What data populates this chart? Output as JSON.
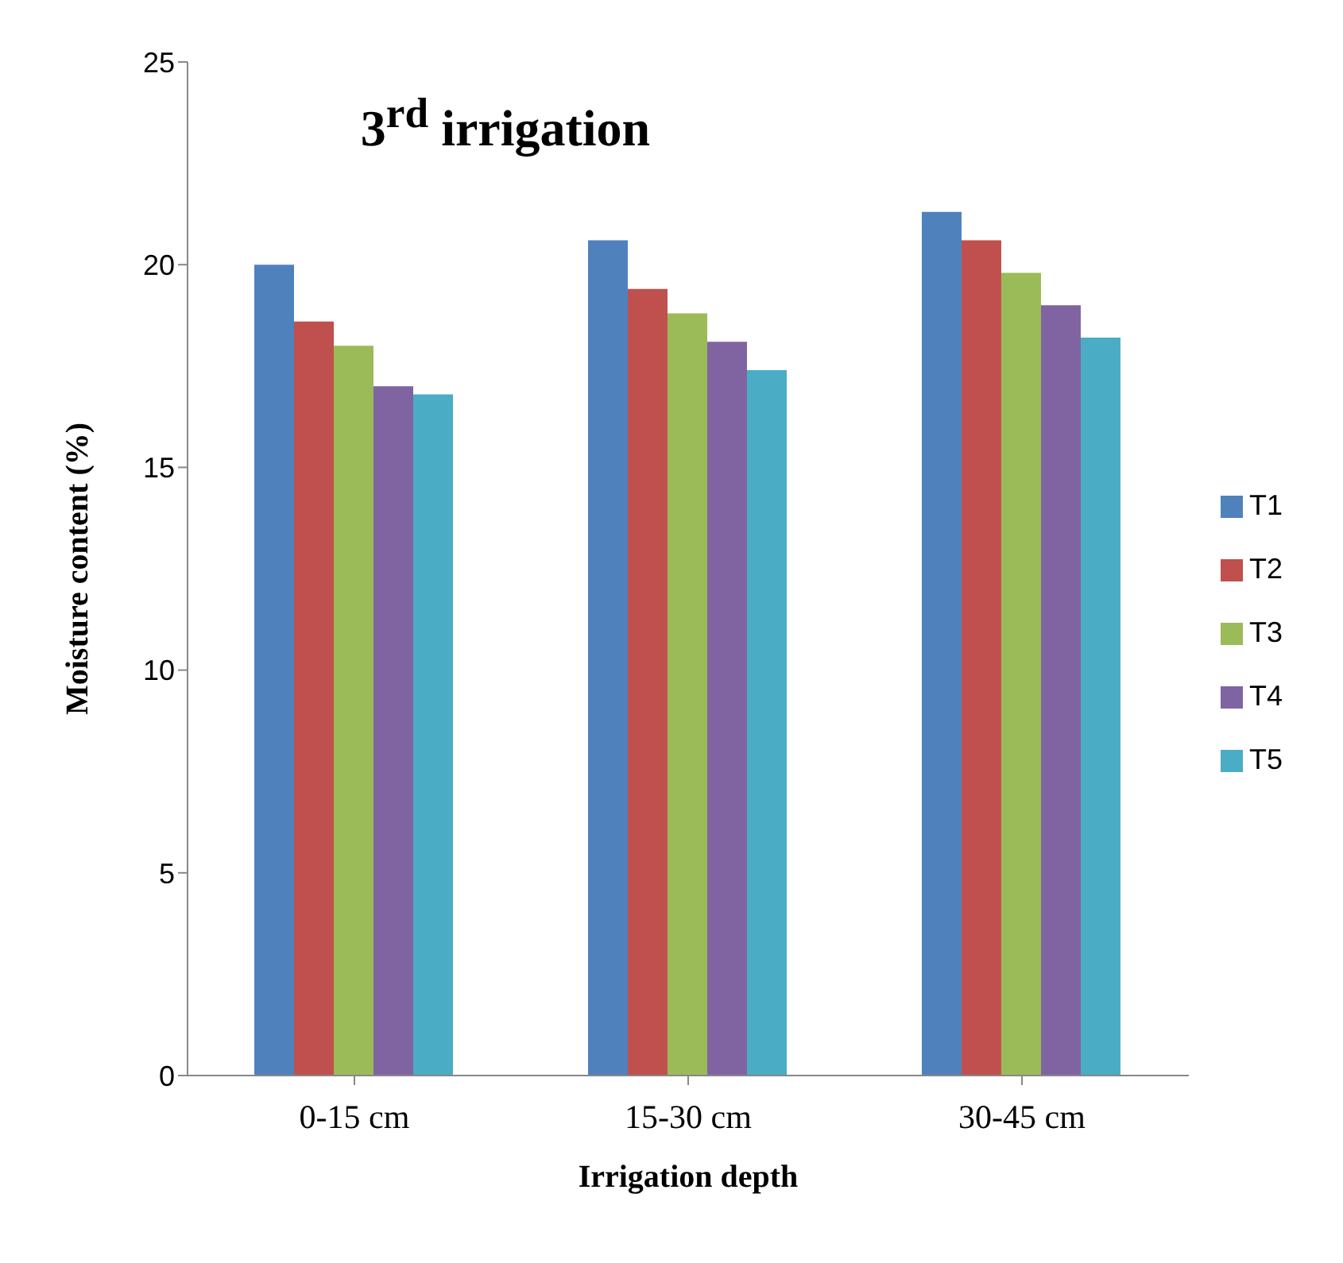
{
  "chart_data": {
    "type": "bar",
    "title": "3$^{rd}$ irrigation",
    "xlabel": "Irrigation depth",
    "ylabel": "Moisture content (%)",
    "categories": [
      "0-15 cm",
      "15-30 cm",
      "30-45 cm"
    ],
    "series": [
      {
        "name": "T1",
        "color": "#4f81bd",
        "values": [
          20.0,
          20.6,
          21.3
        ]
      },
      {
        "name": "T2",
        "color": "#c0504d",
        "values": [
          18.6,
          19.4,
          20.6
        ]
      },
      {
        "name": "T3",
        "color": "#9bbb59",
        "values": [
          18.0,
          18.8,
          19.8
        ]
      },
      {
        "name": "T4",
        "color": "#8064a2",
        "values": [
          17.0,
          18.1,
          19.0
        ]
      },
      {
        "name": "T5",
        "color": "#4bacc6",
        "values": [
          16.8,
          17.4,
          18.2
        ]
      }
    ],
    "ylim": [
      0,
      25
    ],
    "yticks": [
      0,
      5,
      10,
      15,
      20,
      25
    ],
    "grid": false,
    "legend": "right"
  }
}
